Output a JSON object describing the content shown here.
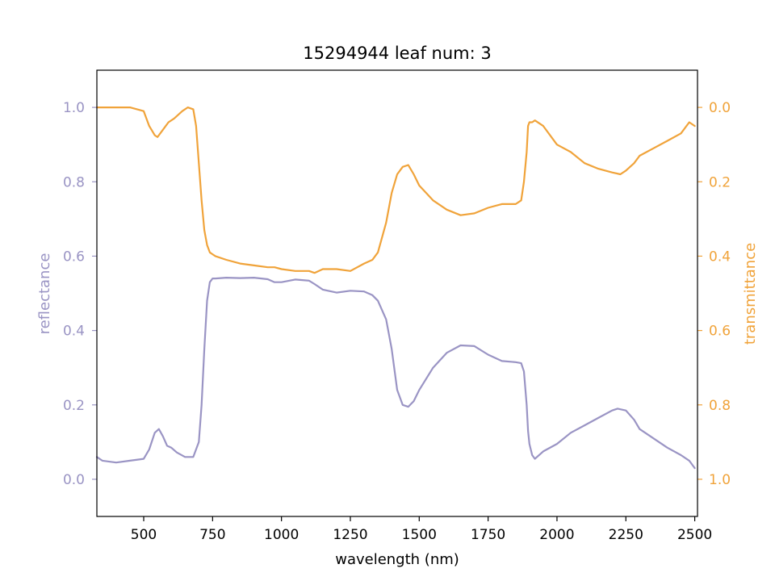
{
  "chart_data": {
    "type": "line",
    "title": "15294944 leaf num: 3",
    "xlabel": "wavelength (nm)",
    "ylabel_left": "reflectance",
    "ylabel_right": "transmittance",
    "xlim": [
      330,
      2510
    ],
    "ylim_left": [
      -0.1,
      1.1
    ],
    "ylim_right_inverted": [
      1.1,
      -0.1
    ],
    "x_ticks": [
      500,
      750,
      1000,
      1250,
      1500,
      1750,
      2000,
      2250,
      2500
    ],
    "y_ticks_left": [
      0.0,
      0.2,
      0.4,
      0.6,
      0.8,
      1.0
    ],
    "y_ticks_right": [
      0.0,
      0.2,
      0.4,
      0.6,
      0.8,
      1.0
    ],
    "colors": {
      "reflectance": "#9a94c4",
      "transmittance": "#f0a33a"
    },
    "series": [
      {
        "name": "reflectance",
        "axis": "left",
        "x": [
          330,
          350,
          400,
          450,
          500,
          520,
          540,
          555,
          570,
          585,
          600,
          620,
          650,
          680,
          700,
          710,
          720,
          730,
          740,
          750,
          760,
          800,
          850,
          900,
          950,
          975,
          1000,
          1050,
          1100,
          1120,
          1150,
          1200,
          1250,
          1300,
          1330,
          1350,
          1380,
          1400,
          1420,
          1440,
          1460,
          1480,
          1500,
          1550,
          1600,
          1650,
          1700,
          1750,
          1800,
          1850,
          1870,
          1880,
          1890,
          1895,
          1900,
          1910,
          1920,
          1950,
          2000,
          2050,
          2100,
          2150,
          2200,
          2220,
          2250,
          2280,
          2300,
          2350,
          2400,
          2450,
          2480,
          2500
        ],
        "y": [
          0.06,
          0.05,
          0.045,
          0.05,
          0.055,
          0.08,
          0.125,
          0.135,
          0.115,
          0.09,
          0.085,
          0.072,
          0.06,
          0.06,
          0.1,
          0.2,
          0.35,
          0.48,
          0.53,
          0.54,
          0.54,
          0.542,
          0.541,
          0.542,
          0.538,
          0.53,
          0.53,
          0.537,
          0.534,
          0.525,
          0.51,
          0.502,
          0.507,
          0.505,
          0.495,
          0.48,
          0.43,
          0.35,
          0.24,
          0.2,
          0.195,
          0.21,
          0.24,
          0.3,
          0.34,
          0.36,
          0.358,
          0.335,
          0.318,
          0.315,
          0.312,
          0.29,
          0.2,
          0.13,
          0.095,
          0.065,
          0.055,
          0.075,
          0.095,
          0.125,
          0.145,
          0.165,
          0.185,
          0.19,
          0.185,
          0.16,
          0.135,
          0.11,
          0.085,
          0.065,
          0.05,
          0.03
        ]
      },
      {
        "name": "transmittance",
        "axis": "right",
        "x": [
          330,
          350,
          400,
          450,
          500,
          520,
          540,
          550,
          570,
          590,
          610,
          640,
          660,
          680,
          690,
          700,
          710,
          720,
          730,
          740,
          750,
          760,
          800,
          850,
          900,
          950,
          975,
          1000,
          1050,
          1100,
          1120,
          1150,
          1200,
          1250,
          1300,
          1330,
          1350,
          1380,
          1400,
          1420,
          1440,
          1460,
          1480,
          1500,
          1550,
          1600,
          1650,
          1700,
          1750,
          1800,
          1850,
          1870,
          1880,
          1890,
          1895,
          1900,
          1910,
          1920,
          1950,
          2000,
          2050,
          2100,
          2150,
          2200,
          2230,
          2250,
          2280,
          2300,
          2350,
          2400,
          2450,
          2480,
          2500
        ],
        "y": [
          0.0,
          0.0,
          0.0,
          0.0,
          0.01,
          0.05,
          0.075,
          0.08,
          0.06,
          0.04,
          0.03,
          0.01,
          0.0,
          0.005,
          0.05,
          0.15,
          0.25,
          0.33,
          0.37,
          0.39,
          0.395,
          0.4,
          0.41,
          0.42,
          0.425,
          0.43,
          0.43,
          0.435,
          0.44,
          0.44,
          0.445,
          0.435,
          0.435,
          0.44,
          0.42,
          0.41,
          0.39,
          0.31,
          0.23,
          0.18,
          0.16,
          0.155,
          0.18,
          0.21,
          0.25,
          0.275,
          0.29,
          0.285,
          0.27,
          0.26,
          0.26,
          0.25,
          0.2,
          0.12,
          0.05,
          0.04,
          0.04,
          0.035,
          0.05,
          0.1,
          0.12,
          0.15,
          0.165,
          0.175,
          0.18,
          0.17,
          0.15,
          0.13,
          0.11,
          0.09,
          0.07,
          0.04,
          0.05
        ]
      }
    ]
  }
}
